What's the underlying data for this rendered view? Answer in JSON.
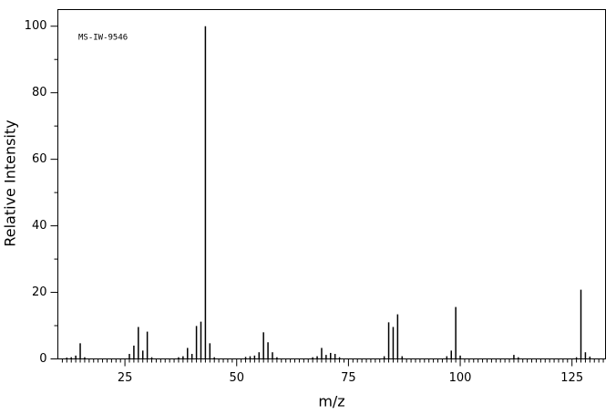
{
  "chart_data": {
    "type": "stick",
    "annotation": "MS-IW-9546",
    "xlabel": "m/z",
    "ylabel": "Relative Intensity",
    "x": [
      12,
      13,
      14,
      15,
      16,
      26,
      27,
      28,
      29,
      30,
      31,
      37,
      38,
      39,
      40,
      41,
      42,
      43,
      44,
      45,
      52,
      53,
      54,
      55,
      56,
      57,
      58,
      59,
      67,
      68,
      69,
      70,
      71,
      72,
      73,
      83,
      84,
      85,
      86,
      87,
      97,
      98,
      99,
      100,
      112,
      113,
      126,
      127,
      128,
      129
    ],
    "values": [
      0.4,
      0.5,
      1,
      4.7,
      0.5,
      1.5,
      4,
      9.6,
      2.5,
      8.2,
      0.5,
      0.5,
      0.8,
      3.3,
      1.5,
      9.9,
      11.2,
      100,
      4.7,
      0.5,
      0.6,
      0.8,
      1,
      2,
      8,
      5,
      2,
      0.5,
      0.5,
      0.8,
      3.3,
      1.2,
      1.8,
      1.5,
      0.5,
      0.8,
      11,
      9.6,
      13.4,
      0.8,
      0.8,
      2.5,
      15.6,
      1,
      1.2,
      0.5,
      0.5,
      20.8,
      2,
      0.7
    ],
    "color": "#000000",
    "xlim": [
      10,
      132.5
    ],
    "ylim": [
      0,
      105
    ],
    "xticks": [
      25,
      50,
      75,
      100,
      125
    ],
    "yticks": [
      0,
      20,
      40,
      60,
      80,
      100
    ],
    "xminorticks": [
      11,
      12,
      13,
      14,
      15,
      16,
      17,
      18,
      19,
      20,
      21,
      22,
      23,
      24,
      26,
      27,
      28,
      29,
      30,
      31,
      32,
      33,
      34,
      35,
      36,
      37,
      38,
      39,
      40,
      41,
      42,
      43,
      44,
      45,
      46,
      47,
      48,
      49,
      51,
      52,
      53,
      54,
      55,
      56,
      57,
      58,
      59,
      60,
      61,
      62,
      63,
      64,
      65,
      66,
      67,
      68,
      69,
      70,
      71,
      72,
      73,
      74,
      76,
      77,
      78,
      79,
      80,
      81,
      82,
      83,
      84,
      85,
      86,
      87,
      88,
      89,
      90,
      91,
      92,
      93,
      94,
      95,
      96,
      97,
      98,
      99,
      101,
      102,
      103,
      104,
      105,
      106,
      107,
      108,
      109,
      110,
      111,
      112,
      113,
      114,
      115,
      116,
      117,
      118,
      119,
      120,
      121,
      122,
      123,
      124,
      126,
      127,
      128,
      129,
      130,
      131,
      132
    ],
    "yminorticks": [
      10,
      30,
      50,
      70,
      90
    ],
    "grid": false
  }
}
